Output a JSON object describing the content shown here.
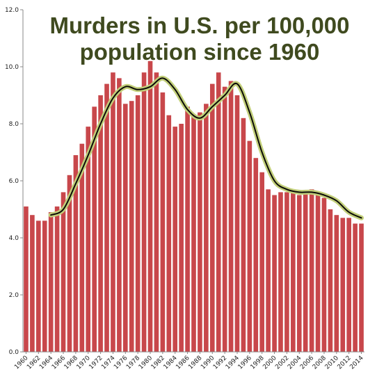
{
  "chart_data": {
    "type": "bar",
    "title_lines": [
      "Murders in U.S. per 100,000",
      "population since 1960"
    ],
    "xlabel": "",
    "ylabel": "",
    "x": [
      1960,
      1961,
      1962,
      1963,
      1964,
      1965,
      1966,
      1967,
      1968,
      1969,
      1970,
      1971,
      1972,
      1973,
      1974,
      1975,
      1976,
      1977,
      1978,
      1979,
      1980,
      1981,
      1982,
      1983,
      1984,
      1985,
      1986,
      1987,
      1988,
      1989,
      1990,
      1991,
      1992,
      1993,
      1994,
      1995,
      1996,
      1997,
      1998,
      1999,
      2000,
      2001,
      2002,
      2003,
      2004,
      2005,
      2006,
      2007,
      2008,
      2009,
      2010,
      2011,
      2012,
      2013,
      2014
    ],
    "x_tick_labels": [
      "1960",
      "1962",
      "1964",
      "1966",
      "1968",
      "1970",
      "1972",
      "1974",
      "1976",
      "1978",
      "1980",
      "1982",
      "1984",
      "1986",
      "1988",
      "1990",
      "1992",
      "1994",
      "1996",
      "1998",
      "2000",
      "2002",
      "2004",
      "2006",
      "2008",
      "2010",
      "2012",
      "2014"
    ],
    "values": [
      5.1,
      4.8,
      4.6,
      4.6,
      4.9,
      5.1,
      5.6,
      6.2,
      6.9,
      7.3,
      7.9,
      8.6,
      9.0,
      9.4,
      9.8,
      9.6,
      8.7,
      8.8,
      9.0,
      9.8,
      10.2,
      9.8,
      9.1,
      8.3,
      7.9,
      8.0,
      8.6,
      8.3,
      8.4,
      8.7,
      9.4,
      9.8,
      9.3,
      9.5,
      9.0,
      8.2,
      7.4,
      6.8,
      6.3,
      5.7,
      5.5,
      5.6,
      5.6,
      5.7,
      5.5,
      5.6,
      5.7,
      5.6,
      5.4,
      5.0,
      4.8,
      4.7,
      4.7,
      4.5,
      4.5
    ],
    "trend": {
      "x": [
        1964,
        1966,
        1968,
        1970,
        1972,
        1974,
        1976,
        1978,
        1980,
        1982,
        1984,
        1986,
        1988,
        1990,
        1992,
        1994,
        1996,
        1998,
        2000,
        2002,
        2004,
        2006,
        2008,
        2010,
        2012,
        2014
      ],
      "y": [
        4.8,
        5.0,
        5.9,
        6.9,
        8.0,
        8.9,
        9.3,
        9.2,
        9.3,
        9.6,
        9.2,
        8.5,
        8.2,
        8.6,
        9.0,
        9.4,
        8.4,
        7.0,
        6.0,
        5.7,
        5.6,
        5.6,
        5.5,
        5.3,
        4.9,
        4.7
      ]
    },
    "y_tick_labels": [
      "0.0",
      "2.0",
      "4.0",
      "6.0",
      "8.0",
      "10.0",
      "12.0"
    ],
    "ylim": [
      0,
      12
    ],
    "grid": false,
    "legend": "none",
    "colors": {
      "bar": "#c8474b",
      "trend_line": "#0c0c08",
      "trend_glow": "#c2cf7a",
      "title": "#3f4a1f",
      "axis": "#888888"
    }
  }
}
